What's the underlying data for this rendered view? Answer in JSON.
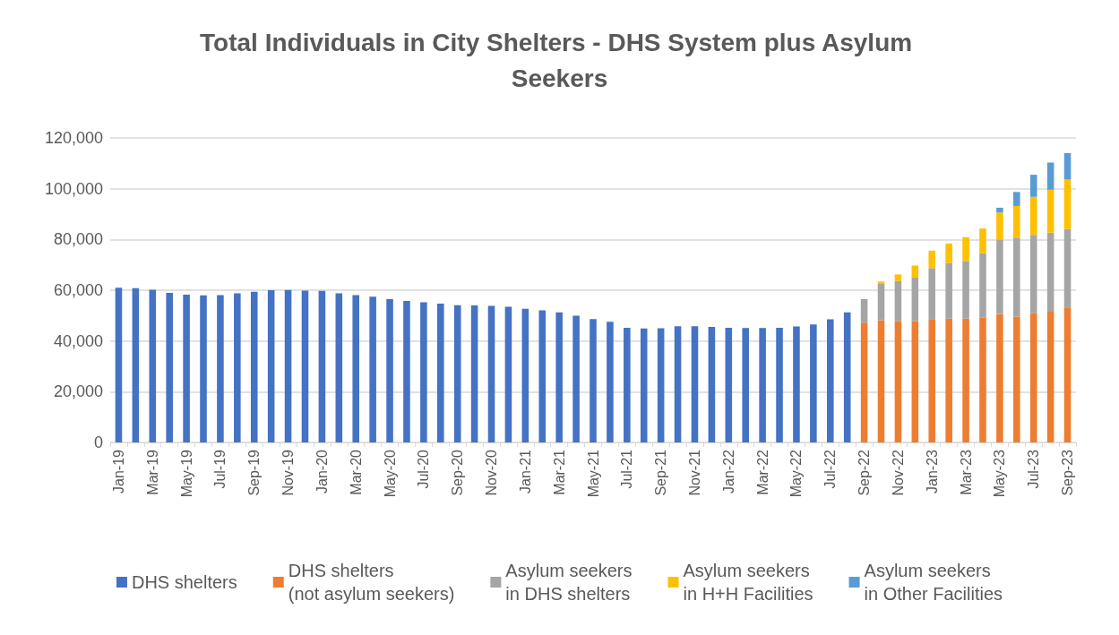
{
  "chart_data": {
    "type": "bar",
    "title": "Total Individuals in City Shelters - DHS System plus Asylum Seekers",
    "stacked": true,
    "grid": "y",
    "legend": "bottom",
    "categories": [
      "Jan-19",
      null,
      "Mar-19",
      null,
      "May-19",
      null,
      "Jul-19",
      null,
      "Sep-19",
      null,
      "Nov-19",
      null,
      "Jan-20",
      null,
      "Mar-20",
      null,
      "May-20",
      null,
      "Jul-20",
      null,
      "Sep-20",
      null,
      "Nov-20",
      null,
      "Jan-21",
      null,
      "Mar-21",
      null,
      "May-21",
      null,
      "Jul-21",
      null,
      "Sep-21",
      null,
      "Nov-21",
      null,
      "Jan-22",
      null,
      "Mar-22",
      null,
      "May-22",
      null,
      "Jul-22",
      null,
      "Sep-22",
      null,
      "Nov-22",
      null,
      "Jan-23",
      null,
      "Mar-23",
      null,
      "May-23",
      null,
      "Jul-23",
      null,
      "Sep-23"
    ],
    "ylim": [
      0,
      120000
    ],
    "yticks": [
      0,
      {
        "value": 20000,
        "label": "20,000"
      },
      {
        "value": 40000,
        "label": "40,000"
      },
      {
        "value": 60000,
        "label": "60,000"
      },
      {
        "value": 80000,
        "label": "80,000"
      },
      {
        "value": 100000,
        "label": "100,000"
      },
      {
        "value": 120000,
        "label": "120,000"
      }
    ],
    "series": [
      {
        "name": "DHS shelters",
        "color": "#4472c4",
        "values": [
          61000,
          60800,
          60200,
          58900,
          58200,
          58000,
          58100,
          58800,
          59400,
          60000,
          60100,
          59800,
          59700,
          58800,
          58100,
          57400,
          56500,
          55800,
          55200,
          54700,
          54100,
          54000,
          53800,
          53500,
          52700,
          52100,
          51300,
          49900,
          48600,
          47600,
          45200,
          44900,
          45000,
          45800,
          45800,
          45500,
          45200,
          45100,
          45100,
          45200,
          45700,
          46500,
          48500,
          51300,
          null,
          null,
          null,
          null,
          null,
          null,
          null,
          null,
          null,
          null,
          null,
          null,
          null
        ]
      },
      {
        "name": "DHS shelters\n(not asylum seekers)",
        "color": "#ed7d31",
        "values": [
          null,
          null,
          null,
          null,
          null,
          null,
          null,
          null,
          null,
          null,
          null,
          null,
          null,
          null,
          null,
          null,
          null,
          null,
          null,
          null,
          null,
          null,
          null,
          null,
          null,
          null,
          null,
          null,
          null,
          null,
          null,
          null,
          null,
          null,
          null,
          null,
          null,
          null,
          null,
          null,
          null,
          null,
          null,
          null,
          47200,
          48200,
          47800,
          47800,
          48600,
          48800,
          48800,
          49200,
          50600,
          49600,
          50900,
          51500,
          53200
        ]
      },
      {
        "name": "Asylum seekers\nin DHS shelters",
        "color": "#a5a5a5",
        "values": [
          null,
          null,
          null,
          null,
          null,
          null,
          null,
          null,
          null,
          null,
          null,
          null,
          null,
          null,
          null,
          null,
          null,
          null,
          null,
          null,
          null,
          null,
          null,
          null,
          null,
          null,
          null,
          null,
          null,
          null,
          null,
          null,
          null,
          null,
          null,
          null,
          null,
          null,
          null,
          null,
          null,
          null,
          null,
          null,
          9300,
          14500,
          15800,
          17200,
          20100,
          21900,
          22700,
          25400,
          29400,
          31100,
          30900,
          31200,
          30900
        ]
      },
      {
        "name": "Asylum seekers\nin H+H Facilities",
        "color": "#ffc000",
        "values": [
          null,
          null,
          null,
          null,
          null,
          null,
          null,
          null,
          null,
          null,
          null,
          null,
          null,
          null,
          null,
          null,
          null,
          null,
          null,
          null,
          null,
          null,
          null,
          null,
          null,
          null,
          null,
          null,
          null,
          null,
          null,
          null,
          null,
          null,
          null,
          null,
          null,
          null,
          null,
          null,
          null,
          null,
          null,
          null,
          null,
          700,
          2600,
          4700,
          6900,
          7700,
          9400,
          9700,
          10600,
          12500,
          15000,
          16900,
          19500
        ]
      },
      {
        "name": "Asylum seekers\nin Other Facilities",
        "color": "#5b9bd5",
        "values": [
          null,
          null,
          null,
          null,
          null,
          null,
          null,
          null,
          null,
          null,
          null,
          null,
          null,
          null,
          null,
          null,
          null,
          null,
          null,
          null,
          null,
          null,
          null,
          null,
          null,
          null,
          null,
          null,
          null,
          null,
          null,
          null,
          null,
          null,
          null,
          null,
          null,
          null,
          null,
          null,
          null,
          null,
          null,
          null,
          null,
          null,
          null,
          null,
          null,
          null,
          null,
          null,
          1900,
          5500,
          8700,
          10700,
          10400
        ]
      }
    ]
  }
}
